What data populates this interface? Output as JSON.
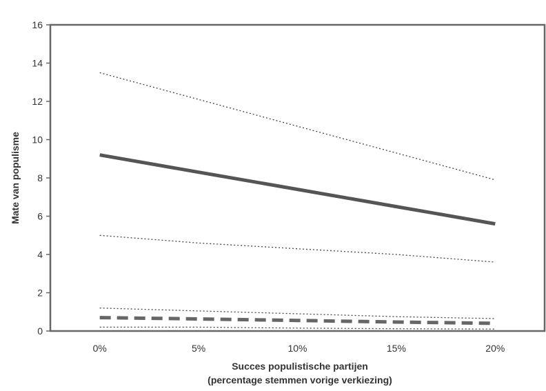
{
  "chart_data": {
    "type": "line",
    "title": "",
    "xlabel_line1": "Succes populistische partijen",
    "xlabel_line2": "(percentage stemmen vorige verkiezing)",
    "ylabel": "Mate van populisme",
    "categories": [
      "0%",
      "5%",
      "10%",
      "15%",
      "20%"
    ],
    "x": [
      0,
      5,
      10,
      15,
      20
    ],
    "xlim": [
      -2.5,
      22.5
    ],
    "ylim": [
      0,
      16
    ],
    "yticks": [
      0,
      2,
      4,
      6,
      8,
      10,
      12,
      14,
      16
    ],
    "grid": false,
    "legend": "none",
    "series": [
      {
        "style": "solid-thick",
        "color": "#555555",
        "values": [
          9.2,
          8.3,
          7.4,
          6.5,
          5.6
        ]
      },
      {
        "style": "dotted",
        "color": "#444444",
        "values": [
          13.5,
          12.1,
          10.7,
          9.3,
          7.9
        ]
      },
      {
        "style": "dotted",
        "color": "#444444",
        "values": [
          5.0,
          4.6,
          4.3,
          4.0,
          3.6
        ]
      },
      {
        "style": "dashed-thick",
        "color": "#666666",
        "values": [
          0.7,
          0.63,
          0.55,
          0.47,
          0.4
        ]
      },
      {
        "style": "dotted",
        "color": "#444444",
        "values": [
          1.2,
          1.05,
          0.9,
          0.75,
          0.65
        ]
      },
      {
        "style": "dotted",
        "color": "#444444",
        "values": [
          0.2,
          0.2,
          0.15,
          0.12,
          0.1
        ]
      }
    ]
  }
}
